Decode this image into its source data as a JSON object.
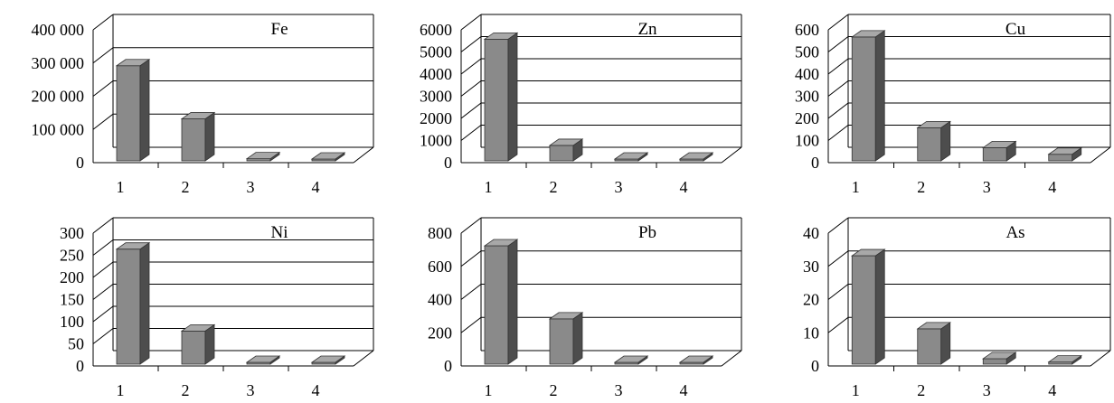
{
  "colors": {
    "bar_front": "#8a8a8a",
    "bar_side": "#4d4d4d",
    "bar_top": "#a8a8a8",
    "line": "#000000",
    "background": "#ffffff"
  },
  "chart_data": [
    {
      "type": "bar",
      "title": "Fe",
      "categories": [
        "1",
        "2",
        "3",
        "4"
      ],
      "values": [
        300000,
        140000,
        20000,
        18000
      ],
      "ylim": [
        0,
        400000
      ],
      "yticks": [
        0,
        100000,
        200000,
        300000,
        400000
      ],
      "ytick_labels": [
        "0",
        "100 000",
        "200 000",
        "300 000",
        "400 000"
      ],
      "grid": true
    },
    {
      "type": "bar",
      "title": "Zn",
      "categories": [
        "1",
        "2",
        "3",
        "4"
      ],
      "values": [
        5700,
        900,
        80,
        30
      ],
      "ylim": [
        0,
        6000
      ],
      "yticks": [
        0,
        1000,
        2000,
        3000,
        4000,
        5000,
        6000
      ],
      "ytick_labels": [
        "0",
        "1000",
        "2000",
        "3000",
        "4000",
        "5000",
        "6000"
      ],
      "grid": true
    },
    {
      "type": "bar",
      "title": "Cu",
      "categories": [
        "1",
        "2",
        "3",
        "4"
      ],
      "values": [
        580,
        170,
        80,
        50
      ],
      "ylim": [
        0,
        600
      ],
      "yticks": [
        0,
        100,
        200,
        300,
        400,
        500,
        600
      ],
      "ytick_labels": [
        "0",
        "100",
        "200",
        "300",
        "400",
        "500",
        "600"
      ],
      "grid": true
    },
    {
      "type": "bar",
      "title": "Ni",
      "categories": [
        "1",
        "2",
        "3",
        "4"
      ],
      "values": [
        270,
        85,
        8,
        12
      ],
      "ylim": [
        0,
        300
      ],
      "yticks": [
        0,
        50,
        100,
        150,
        200,
        250,
        300
      ],
      "ytick_labels": [
        "0",
        "50",
        "100",
        "150",
        "200",
        "250",
        "300"
      ],
      "grid": true
    },
    {
      "type": "bar",
      "title": "Pb",
      "categories": [
        "1",
        "2",
        "3",
        "4"
      ],
      "values": [
        740,
        300,
        15,
        10
      ],
      "ylim": [
        0,
        800
      ],
      "yticks": [
        0,
        200,
        400,
        600,
        800
      ],
      "ytick_labels": [
        "0",
        "200",
        "400",
        "600",
        "800"
      ],
      "grid": true
    },
    {
      "type": "bar",
      "title": "As",
      "categories": [
        "1",
        "2",
        "3",
        "4"
      ],
      "values": [
        34,
        12,
        3,
        2
      ],
      "ylim": [
        0,
        40
      ],
      "yticks": [
        0,
        10,
        20,
        30,
        40
      ],
      "ytick_labels": [
        "0",
        "10",
        "20",
        "30",
        "40"
      ],
      "grid": true
    }
  ]
}
